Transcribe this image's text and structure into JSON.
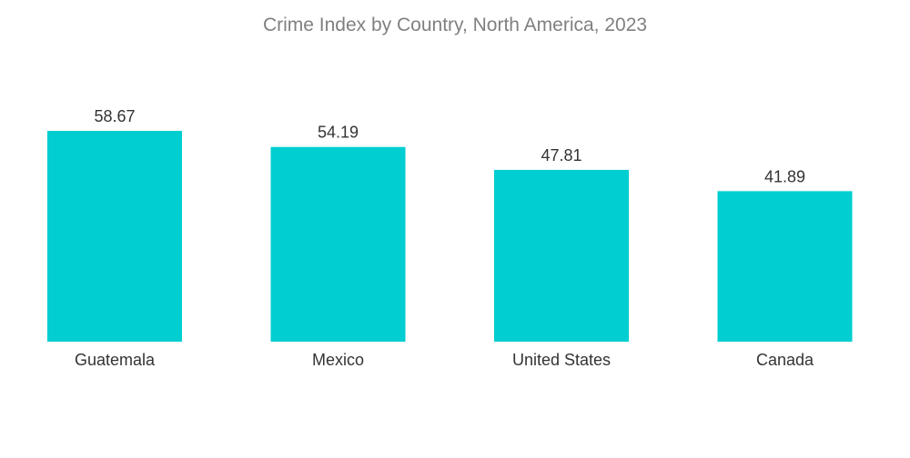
{
  "chart_data": {
    "type": "bar",
    "title": "Crime Index by Country, North America, 2023",
    "categories": [
      "Guatemala",
      "Mexico",
      "United States",
      "Canada"
    ],
    "values": [
      58.67,
      54.19,
      47.81,
      41.89
    ],
    "value_labels": [
      "58.67",
      "54.19",
      "47.81",
      "41.89"
    ],
    "xlabel": "",
    "ylabel": "",
    "ylim": [
      0,
      58.67
    ],
    "grid": false,
    "legend": "none",
    "bar_color": "#00CED1"
  }
}
